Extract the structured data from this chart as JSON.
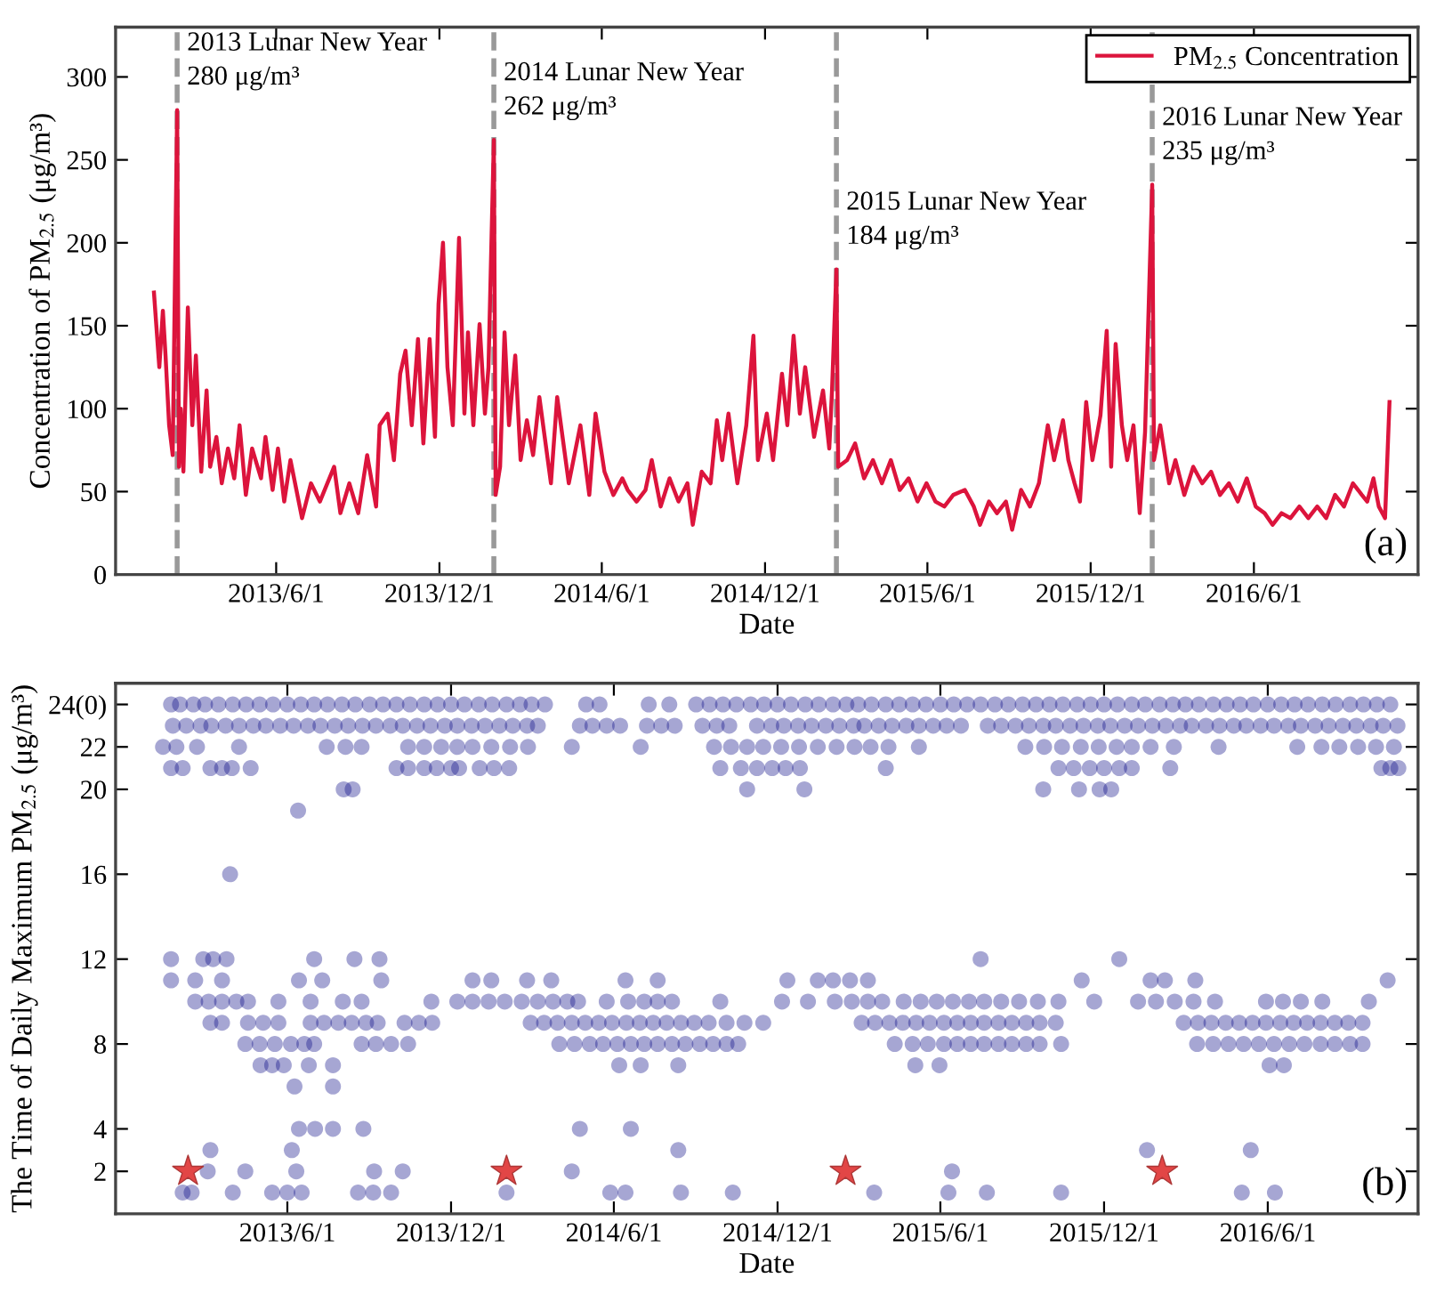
{
  "chart_data": [
    {
      "type": "line",
      "xlabel": "Date",
      "ylabel": "Concentration of PM$_{2.5}$ (μg/m³)",
      "legend": "top right",
      "xlim": [
        "2012-12-03",
        "2016-12-02"
      ],
      "ylim": [
        0,
        330
      ],
      "xticks": [
        {
          "value": "2013-06-01",
          "label": "2013/6/1"
        },
        {
          "value": "2013-12-01",
          "label": "2013/12/1"
        },
        {
          "value": "2014-06-01",
          "label": "2014/6/1"
        },
        {
          "value": "2014-12-01",
          "label": "2014/12/1"
        },
        {
          "value": "2015-06-01",
          "label": "2015/6/1"
        },
        {
          "value": "2015-12-01",
          "label": "2015/12/1"
        },
        {
          "value": "2016-06-01",
          "label": "2016/6/1"
        }
      ],
      "yticks": [
        0,
        50,
        100,
        150,
        200,
        250,
        300
      ],
      "series": [
        {
          "name": "PM$_{2.5}$ Concentration",
          "color": "#dc143c",
          "x": [
            "2013-01-15",
            "2013-01-21",
            "2013-01-25",
            "2013-01-28",
            "2013-02-01",
            "2013-02-05",
            "2013-02-10",
            "2013-02-12",
            "2013-02-14",
            "2013-02-17",
            "2013-02-22",
            "2013-02-27",
            "2013-03-03",
            "2013-03-09",
            "2013-03-15",
            "2013-03-19",
            "2013-03-26",
            "2013-04-01",
            "2013-04-08",
            "2013-04-15",
            "2013-04-21",
            "2013-04-28",
            "2013-05-05",
            "2013-05-15",
            "2013-05-20",
            "2013-05-28",
            "2013-06-03",
            "2013-06-10",
            "2013-06-17",
            "2013-06-30",
            "2013-07-10",
            "2013-07-20",
            "2013-08-05",
            "2013-08-12",
            "2013-08-22",
            "2013-09-01",
            "2013-09-11",
            "2013-09-21",
            "2013-09-25",
            "2013-10-04",
            "2013-10-11",
            "2013-10-18",
            "2013-10-24",
            "2013-10-31",
            "2013-11-07",
            "2013-11-13",
            "2013-11-20",
            "2013-11-26",
            "2013-11-30",
            "2013-12-05",
            "2013-12-10",
            "2013-12-16",
            "2013-12-23",
            "2013-12-29",
            "2014-01-02",
            "2014-01-08",
            "2014-01-15",
            "2014-01-21",
            "2014-01-25",
            "2014-01-31",
            "2014-02-02",
            "2014-02-07",
            "2014-02-12",
            "2014-02-17",
            "2014-02-24",
            "2014-03-02",
            "2014-03-09",
            "2014-03-16",
            "2014-03-23",
            "2014-04-05",
            "2014-04-12",
            "2014-04-25",
            "2014-05-08",
            "2014-05-18",
            "2014-05-25",
            "2014-06-04",
            "2014-06-14",
            "2014-06-24",
            "2014-06-30",
            "2014-07-10",
            "2014-07-20",
            "2014-07-27",
            "2014-08-06",
            "2014-08-16",
            "2014-08-26",
            "2014-09-05",
            "2014-09-11",
            "2014-09-21",
            "2014-10-01",
            "2014-10-08",
            "2014-10-14",
            "2014-10-21",
            "2014-10-31",
            "2014-11-10",
            "2014-11-18",
            "2014-11-23",
            "2014-12-03",
            "2014-12-10",
            "2014-12-20",
            "2014-12-26",
            "2015-01-02",
            "2015-01-09",
            "2015-01-15",
            "2015-01-25",
            "2015-02-04",
            "2015-02-11",
            "2015-02-14",
            "2015-02-19",
            "2015-02-21",
            "2015-03-03",
            "2015-03-12",
            "2015-03-22",
            "2015-04-01",
            "2015-04-11",
            "2015-04-21",
            "2015-05-01",
            "2015-05-11",
            "2015-05-21",
            "2015-05-31",
            "2015-06-10",
            "2015-06-20",
            "2015-06-30",
            "2015-07-13",
            "2015-07-23",
            "2015-07-30",
            "2015-08-09",
            "2015-08-18",
            "2015-08-28",
            "2015-09-04",
            "2015-09-14",
            "2015-09-24",
            "2015-10-04",
            "2015-10-14",
            "2015-10-21",
            "2015-10-31",
            "2015-11-06",
            "2015-11-13",
            "2015-11-19",
            "2015-11-26",
            "2015-12-03",
            "2015-12-12",
            "2015-12-19",
            "2015-12-24",
            "2015-12-29",
            "2016-01-05",
            "2016-01-11",
            "2016-01-18",
            "2016-01-25",
            "2016-01-31",
            "2016-02-08",
            "2016-02-10",
            "2016-02-17",
            "2016-02-27",
            "2016-03-05",
            "2016-03-15",
            "2016-03-25",
            "2016-04-04",
            "2016-04-14",
            "2016-04-24",
            "2016-05-04",
            "2016-05-14",
            "2016-05-24",
            "2016-06-03",
            "2016-06-13",
            "2016-06-22",
            "2016-07-02",
            "2016-07-12",
            "2016-07-22",
            "2016-08-01",
            "2016-08-11",
            "2016-08-21",
            "2016-08-31",
            "2016-09-10",
            "2016-09-20",
            "2016-09-30",
            "2016-10-06",
            "2016-10-13",
            "2016-10-19",
            "2016-10-26",
            "2016-10-31"
          ],
          "values": [
            170,
            125,
            159,
            132,
            90,
            72,
            280,
            65,
            100,
            62,
            161,
            90,
            132,
            62,
            111,
            65,
            83,
            55,
            76,
            58,
            90,
            48,
            76,
            58,
            83,
            51,
            76,
            44,
            69,
            34,
            55,
            44,
            65,
            37,
            55,
            37,
            72,
            41,
            90,
            97,
            69,
            121,
            135,
            90,
            142,
            79,
            142,
            83,
            163,
            200,
            125,
            90,
            203,
            97,
            146,
            90,
            151,
            97,
            125,
            262,
            48,
            65,
            146,
            90,
            132,
            69,
            93,
            72,
            107,
            55,
            107,
            55,
            90,
            48,
            97,
            62,
            48,
            58,
            51,
            44,
            51,
            69,
            41,
            58,
            44,
            55,
            30,
            62,
            55,
            93,
            69,
            97,
            55,
            90,
            144,
            69,
            97,
            69,
            121,
            90,
            144,
            97,
            125,
            83,
            111,
            76,
            110,
            184,
            65,
            69,
            79,
            58,
            69,
            55,
            69,
            51,
            58,
            44,
            55,
            44,
            41,
            48,
            51,
            41,
            30,
            44,
            37,
            44,
            27,
            51,
            41,
            55,
            90,
            69,
            93,
            69,
            55,
            44,
            104,
            69,
            96,
            147,
            65,
            139,
            90,
            69,
            90,
            37,
            86,
            235,
            69,
            90,
            55,
            69,
            48,
            65,
            55,
            62,
            48,
            55,
            44,
            58,
            41,
            37,
            30,
            37,
            34,
            41,
            34,
            41,
            34,
            48,
            41,
            55,
            48,
            44,
            58,
            41,
            34,
            104
          ]
        }
      ],
      "ref_lines": [
        {
          "axis": "x",
          "value": "2013-02-10",
          "color": "#999999",
          "line_style": "dashed"
        },
        {
          "axis": "x",
          "value": "2014-01-31",
          "color": "#999999",
          "line_style": "dashed"
        },
        {
          "axis": "x",
          "value": "2015-02-19",
          "color": "#999999",
          "line_style": "dashed"
        },
        {
          "axis": "x",
          "value": "2016-02-08",
          "color": "#999999",
          "line_style": "dashed"
        }
      ],
      "annotations": [
        {
          "text": "2013 Lunar New Year\n280 μg/m³",
          "x": "2013-02-10",
          "y": 280
        },
        {
          "text": "2014 Lunar New Year\n262 μg/m³",
          "x": "2014-01-31",
          "y": 262
        },
        {
          "text": "2015 Lunar New Year\n184 μg/m³",
          "x": "2015-02-19",
          "y": 184
        },
        {
          "text": "2016 Lunar New Year\n235 μg/m³",
          "x": "2016-02-08",
          "y": 235
        },
        "(a)"
      ]
    },
    {
      "type": "scatter",
      "marker": "circle",
      "xlabel": "Date",
      "ylabel": "The Time of Daily Maximum PM$_{2.5}$ (μg/m³)",
      "xlim": [
        "2012-11-21",
        "2016-11-16"
      ],
      "ylim": [
        0,
        25
      ],
      "xticks": [
        {
          "value": "2013-06-01",
          "label": "2013/6/1"
        },
        {
          "value": "2013-12-01",
          "label": "2013/12/1"
        },
        {
          "value": "2014-06-01",
          "label": "2014/6/1"
        },
        {
          "value": "2014-12-01",
          "label": "2014/12/1"
        },
        {
          "value": "2015-06-01",
          "label": "2015/6/1"
        },
        {
          "value": "2015-12-01",
          "label": "2015/12/1"
        },
        {
          "value": "2016-06-01",
          "label": "2016/6/1"
        }
      ],
      "yticks": [
        2,
        4,
        8,
        12,
        16,
        20,
        22,
        {
          "value": 24,
          "label": "24(0)"
        }
      ],
      "series": [
        {
          "color": "#000080",
          "x": [
            "2013-01-22",
            "2013-02-01",
            "2013-02-16",
            "2013-03-01",
            "2013-03-16",
            "2013-04-01",
            "2013-04-16",
            "2013-05-01",
            "2013-05-16",
            "2013-06-01",
            "2013-06-16",
            "2013-07-01",
            "2013-07-16",
            "2013-08-01",
            "2013-08-16",
            "2013-09-01",
            "2013-09-16",
            "2013-10-01",
            "2013-10-16",
            "2013-11-01",
            "2013-11-16",
            "2013-12-01",
            "2013-12-16",
            "2014-01-01",
            "2014-01-16",
            "2014-02-01",
            "2014-02-16",
            "2014-03-01",
            "2014-03-16",
            "2014-05-01",
            "2014-05-16",
            "2014-07-10",
            "2014-08-02",
            "2014-09-01",
            "2014-09-16",
            "2014-10-01",
            "2014-10-16",
            "2014-11-01",
            "2014-11-16",
            "2014-12-01",
            "2014-12-16",
            "2015-01-01",
            "2015-01-16",
            "2015-02-01",
            "2015-02-16",
            "2015-03-01",
            "2015-03-16",
            "2015-04-01",
            "2015-04-16",
            "2015-05-01",
            "2015-05-16",
            "2015-06-01",
            "2015-06-16",
            "2015-07-01",
            "2015-07-16",
            "2015-08-01",
            "2015-08-16",
            "2015-09-01",
            "2015-09-16",
            "2015-10-01",
            "2015-10-16",
            "2015-11-01",
            "2015-11-16",
            "2015-12-01",
            "2015-12-16",
            "2016-01-01",
            "2016-01-16",
            "2016-02-01",
            "2016-02-16",
            "2016-03-01",
            "2016-03-16",
            "2016-04-01",
            "2016-04-16",
            "2016-05-01",
            "2016-05-16",
            "2016-06-01",
            "2016-06-16",
            "2016-07-01",
            "2016-07-16",
            "2016-08-01",
            "2016-08-16",
            "2016-09-01",
            "2016-09-16",
            "2016-10-01",
            "2016-10-16"
          ],
          "values": [
            24,
            24,
            24,
            24,
            24,
            24,
            24,
            24,
            24,
            24,
            24,
            24,
            24,
            24,
            24,
            24,
            24,
            24,
            24,
            24,
            24,
            24,
            24,
            24,
            24,
            24,
            24,
            24,
            24,
            24,
            24,
            24,
            24,
            24,
            24,
            24,
            24,
            24,
            24,
            24,
            24,
            24,
            24,
            24,
            24,
            24,
            24,
            24,
            24,
            24,
            24,
            24,
            24,
            24,
            24,
            24,
            24,
            24,
            24,
            24,
            24,
            24,
            24,
            24,
            24,
            24,
            24,
            24,
            24,
            24,
            24,
            24,
            24,
            24,
            24,
            24,
            24,
            24,
            24,
            24,
            24,
            24,
            24,
            24,
            24
          ]
        },
        {
          "color": "#000080",
          "x": [
            "2013-01-24",
            "2013-02-08",
            "2013-02-24",
            "2013-03-08",
            "2013-03-24",
            "2013-04-08",
            "2013-04-24",
            "2013-05-08",
            "2013-05-24",
            "2013-06-08",
            "2013-06-24",
            "2013-07-08",
            "2013-07-24",
            "2013-08-08",
            "2013-08-24",
            "2013-09-08",
            "2013-09-24",
            "2013-10-08",
            "2013-10-24",
            "2013-11-08",
            "2013-11-24",
            "2013-12-08",
            "2013-12-24",
            "2014-01-08",
            "2014-01-24",
            "2014-02-08",
            "2014-02-24",
            "2014-03-08",
            "2014-04-24",
            "2014-05-08",
            "2014-05-24",
            "2014-06-08",
            "2014-07-08",
            "2014-07-24",
            "2014-08-08",
            "2014-09-08",
            "2014-09-24",
            "2014-10-08",
            "2014-11-08",
            "2014-11-24",
            "2014-12-08",
            "2014-12-24",
            "2015-01-08",
            "2015-01-24",
            "2015-02-08",
            "2015-02-24",
            "2015-03-08",
            "2015-03-24",
            "2015-04-08",
            "2015-04-24",
            "2015-05-08",
            "2015-05-24",
            "2015-06-08",
            "2015-06-24",
            "2015-07-24",
            "2015-08-08",
            "2015-08-24",
            "2015-09-08",
            "2015-09-24",
            "2015-10-08",
            "2015-10-24",
            "2015-11-08",
            "2015-11-24",
            "2015-12-08",
            "2015-12-24",
            "2016-01-08",
            "2016-01-24",
            "2016-02-08",
            "2016-02-24",
            "2016-03-08",
            "2016-03-24",
            "2016-04-08",
            "2016-04-24",
            "2016-05-08",
            "2016-05-24",
            "2016-06-08",
            "2016-06-24",
            "2016-07-08",
            "2016-07-24",
            "2016-08-08",
            "2016-08-24",
            "2016-09-08",
            "2016-09-24",
            "2016-10-08",
            "2016-10-24"
          ],
          "values": [
            23,
            23,
            23,
            23,
            23,
            23,
            23,
            23,
            23,
            23,
            23,
            23,
            23,
            23,
            23,
            23,
            23,
            23,
            23,
            23,
            23,
            23,
            23,
            23,
            23,
            23,
            23,
            23,
            23,
            23,
            23,
            23,
            23,
            23,
            23,
            23,
            23,
            23,
            23,
            23,
            23,
            23,
            23,
            23,
            23,
            23,
            23,
            23,
            23,
            23,
            23,
            23,
            23,
            23,
            23,
            23,
            23,
            23,
            23,
            23,
            23,
            23,
            23,
            23,
            23,
            23,
            23,
            23,
            23,
            23,
            23,
            23,
            23,
            23,
            23,
            23,
            23,
            23,
            23,
            23,
            23,
            23,
            23,
            23,
            23
          ]
        },
        {
          "color": "#000080",
          "x": [
            "2013-01-13",
            "2013-01-28",
            "2013-02-20",
            "2013-04-08",
            "2013-07-15",
            "2013-08-05",
            "2013-08-23",
            "2013-10-14",
            "2013-11-01",
            "2013-11-20",
            "2013-12-08",
            "2013-12-25",
            "2014-01-15",
            "2014-02-05",
            "2014-02-25",
            "2014-04-15",
            "2014-07-01",
            "2014-09-21",
            "2014-10-10",
            "2014-10-28",
            "2014-11-15",
            "2014-12-05",
            "2014-12-25",
            "2015-01-15",
            "2015-02-05",
            "2015-02-25",
            "2015-03-15",
            "2015-04-04",
            "2015-05-08",
            "2015-09-04",
            "2015-09-25",
            "2015-10-15",
            "2015-11-05",
            "2015-11-25",
            "2015-12-15",
            "2016-01-01",
            "2016-01-22",
            "2016-02-17",
            "2016-04-07",
            "2016-07-04",
            "2016-07-31",
            "2016-08-20",
            "2016-09-10",
            "2016-09-30",
            "2016-10-20"
          ],
          "values": [
            22,
            22,
            22,
            22,
            22,
            22,
            22,
            22,
            22,
            22,
            22,
            22,
            22,
            22,
            22,
            22,
            22,
            22,
            22,
            22,
            22,
            22,
            22,
            22,
            22,
            22,
            22,
            22,
            22,
            22,
            22,
            22,
            22,
            22,
            22,
            22,
            22,
            22,
            22,
            22,
            22,
            22,
            22,
            22,
            22
          ]
        },
        {
          "color": "#000080",
          "x": [
            "2013-01-22",
            "2013-02-04",
            "2013-03-07",
            "2013-03-20",
            "2013-03-31",
            "2013-04-21",
            "2013-10-01",
            "2013-10-14",
            "2013-11-01",
            "2013-11-15",
            "2013-12-01",
            "2013-12-10",
            "2014-01-02",
            "2014-01-18",
            "2014-02-04",
            "2014-09-28",
            "2014-10-21",
            "2014-11-08",
            "2014-11-25",
            "2014-12-10",
            "2014-12-26",
            "2015-04-01",
            "2015-10-11",
            "2015-10-28",
            "2015-11-15",
            "2015-12-01",
            "2015-12-18",
            "2016-01-01",
            "2016-02-13",
            "2016-10-06",
            "2016-10-16",
            "2016-10-25"
          ],
          "values": [
            21,
            21,
            21,
            21,
            21,
            21,
            21,
            21,
            21,
            21,
            21,
            21,
            21,
            21,
            21,
            21,
            21,
            21,
            21,
            21,
            21,
            21,
            21,
            21,
            21,
            21,
            21,
            21,
            21,
            21,
            21,
            21
          ]
        },
        {
          "color": "#000080",
          "x": [
            "2013-08-03",
            "2013-08-13",
            "2014-10-28",
            "2014-12-31",
            "2015-09-24",
            "2015-11-03",
            "2015-11-26",
            "2015-12-09"
          ],
          "values": [
            20,
            20,
            20,
            20,
            20,
            20,
            20,
            20
          ]
        },
        {
          "color": "#000080",
          "x": [
            "2013-06-13"
          ],
          "values": [
            19
          ]
        },
        {
          "color": "#000080",
          "x": [
            "2013-03-29"
          ],
          "values": [
            16
          ]
        },
        {
          "color": "#000080",
          "x": [
            "2013-01-22",
            "2013-02-27",
            "2013-03-10",
            "2013-03-25",
            "2013-07-01",
            "2013-08-15",
            "2013-09-12",
            "2015-07-16",
            "2015-12-18"
          ],
          "values": [
            12,
            12,
            12,
            12,
            12,
            12,
            12,
            12,
            12
          ]
        },
        {
          "color": "#000080",
          "x": [
            "2013-01-22",
            "2013-02-18",
            "2013-03-20",
            "2013-06-14",
            "2013-07-10",
            "2013-09-14",
            "2013-12-25",
            "2014-01-15",
            "2014-02-24",
            "2014-03-23",
            "2014-06-14",
            "2014-07-20",
            "2014-12-12",
            "2015-01-15",
            "2015-02-01",
            "2015-02-20",
            "2015-03-12",
            "2015-11-06",
            "2016-01-22",
            "2016-02-07",
            "2016-03-12",
            "2016-10-13"
          ],
          "values": [
            11,
            11,
            11,
            11,
            11,
            11,
            11,
            11,
            11,
            11,
            11,
            11,
            11,
            11,
            11,
            11,
            11,
            11,
            11,
            11,
            11,
            11
          ]
        },
        {
          "color": "#000080",
          "x": [
            "2013-02-18",
            "2013-03-05",
            "2013-03-20",
            "2013-04-05",
            "2013-04-18",
            "2013-05-22",
            "2013-06-27",
            "2013-08-02",
            "2013-08-23",
            "2013-11-09",
            "2013-12-08",
            "2013-12-25",
            "2014-01-12",
            "2014-01-30",
            "2014-02-18",
            "2014-03-08",
            "2014-03-25",
            "2014-04-10",
            "2014-04-22",
            "2014-05-24",
            "2014-06-17",
            "2014-07-05",
            "2014-07-20",
            "2014-08-05",
            "2014-09-28",
            "2014-12-06",
            "2015-01-04",
            "2015-02-03",
            "2015-02-22",
            "2015-03-12",
            "2015-03-28",
            "2015-04-21",
            "2015-05-10",
            "2015-05-28",
            "2015-06-15",
            "2015-07-03",
            "2015-07-20",
            "2015-08-08",
            "2015-08-28",
            "2015-09-18",
            "2015-10-11",
            "2015-11-20",
            "2016-01-08",
            "2016-01-28",
            "2016-02-18",
            "2016-03-10",
            "2016-04-03",
            "2016-05-30",
            "2016-06-18",
            "2016-07-08",
            "2016-08-01",
            "2016-09-22"
          ],
          "values": [
            10,
            10,
            10,
            10,
            10,
            10,
            10,
            10,
            10,
            10,
            10,
            10,
            10,
            10,
            10,
            10,
            10,
            10,
            10,
            10,
            10,
            10,
            10,
            10,
            10,
            10,
            10,
            10,
            10,
            10,
            10,
            10,
            10,
            10,
            10,
            10,
            10,
            10,
            10,
            10,
            10,
            10,
            10,
            10,
            10,
            10,
            10,
            10,
            10,
            10,
            10,
            10
          ]
        },
        {
          "color": "#000080",
          "x": [
            "2013-03-07",
            "2013-03-20",
            "2013-04-18",
            "2013-05-05",
            "2013-05-22",
            "2013-06-27",
            "2013-07-12",
            "2013-07-28",
            "2013-08-12",
            "2013-08-28",
            "2013-09-10",
            "2013-10-10",
            "2013-10-26",
            "2013-11-10",
            "2014-02-28",
            "2014-03-15",
            "2014-03-30",
            "2014-04-15",
            "2014-04-30",
            "2014-05-15",
            "2014-05-30",
            "2014-06-15",
            "2014-06-30",
            "2014-07-15",
            "2014-07-30",
            "2014-08-15",
            "2014-08-30",
            "2014-09-15",
            "2014-10-05",
            "2014-10-25",
            "2014-11-15",
            "2015-03-05",
            "2015-03-20",
            "2015-04-05",
            "2015-04-20",
            "2015-05-05",
            "2015-05-20",
            "2015-06-05",
            "2015-06-20",
            "2015-07-05",
            "2015-07-20",
            "2015-08-05",
            "2015-08-20",
            "2015-09-05",
            "2015-09-20",
            "2015-10-08",
            "2016-02-28",
            "2016-03-15",
            "2016-03-30",
            "2016-04-15",
            "2016-04-30",
            "2016-05-15",
            "2016-05-30",
            "2016-06-15",
            "2016-06-30",
            "2016-07-15",
            "2016-07-30",
            "2016-08-15",
            "2016-08-30",
            "2016-09-15"
          ],
          "values": [
            9,
            9,
            9,
            9,
            9,
            9,
            9,
            9,
            9,
            9,
            9,
            9,
            9,
            9,
            9,
            9,
            9,
            9,
            9,
            9,
            9,
            9,
            9,
            9,
            9,
            9,
            9,
            9,
            9,
            9,
            9,
            9,
            9,
            9,
            9,
            9,
            9,
            9,
            9,
            9,
            9,
            9,
            9,
            9,
            9,
            9,
            9,
            9,
            9,
            9,
            9,
            9,
            9,
            9,
            9,
            9,
            9,
            9,
            9,
            9
          ]
        },
        {
          "color": "#000080",
          "x": [
            "2013-04-15",
            "2013-05-01",
            "2013-05-18",
            "2013-06-05",
            "2013-06-20",
            "2013-07-01",
            "2013-08-23",
            "2013-09-08",
            "2013-09-25",
            "2013-10-14",
            "2014-04-01",
            "2014-04-18",
            "2014-05-05",
            "2014-05-20",
            "2014-06-05",
            "2014-06-20",
            "2014-07-05",
            "2014-07-20",
            "2014-08-05",
            "2014-08-20",
            "2014-09-05",
            "2014-09-20",
            "2014-10-05",
            "2014-10-18",
            "2015-04-11",
            "2015-05-01",
            "2015-05-18",
            "2015-06-05",
            "2015-06-20",
            "2015-07-05",
            "2015-07-20",
            "2015-08-05",
            "2015-08-20",
            "2015-09-05",
            "2015-09-20",
            "2015-10-14",
            "2016-03-14",
            "2016-04-01",
            "2016-04-18",
            "2016-05-05",
            "2016-05-22",
            "2016-06-08",
            "2016-06-25",
            "2016-07-12",
            "2016-07-30",
            "2016-08-15",
            "2016-09-01",
            "2016-09-15"
          ],
          "values": [
            8,
            8,
            8,
            8,
            8,
            8,
            8,
            8,
            8,
            8,
            8,
            8,
            8,
            8,
            8,
            8,
            8,
            8,
            8,
            8,
            8,
            8,
            8,
            8,
            8,
            8,
            8,
            8,
            8,
            8,
            8,
            8,
            8,
            8,
            8,
            8,
            8,
            8,
            8,
            8,
            8,
            8,
            8,
            8,
            8,
            8,
            8,
            8
          ]
        },
        {
          "color": "#000080",
          "x": [
            "2013-05-02",
            "2013-05-15",
            "2013-05-28",
            "2013-06-25",
            "2013-07-22",
            "2014-06-07",
            "2014-07-01",
            "2014-08-12",
            "2015-05-04",
            "2015-05-31",
            "2016-06-03",
            "2016-06-19"
          ],
          "values": [
            7,
            7,
            7,
            7,
            7,
            7,
            7,
            7,
            7,
            7,
            7,
            7
          ]
        },
        {
          "color": "#000080",
          "x": [
            "2013-06-09",
            "2013-07-22"
          ],
          "values": [
            6,
            6
          ]
        },
        {
          "color": "#000080",
          "x": [
            "2013-06-14",
            "2013-07-02",
            "2013-07-22",
            "2013-08-25",
            "2014-04-24",
            "2014-06-20"
          ],
          "values": [
            4,
            4,
            4,
            4,
            4,
            4
          ]
        },
        {
          "color": "#000080",
          "x": [
            "2013-03-07",
            "2013-06-06",
            "2014-08-12",
            "2016-01-18",
            "2016-05-13"
          ],
          "values": [
            3,
            3,
            3,
            3,
            3
          ]
        },
        {
          "color": "#000080",
          "x": [
            "2013-03-04",
            "2013-04-15",
            "2013-06-11",
            "2013-09-06",
            "2013-10-08",
            "2014-04-15",
            "2015-06-14"
          ],
          "values": [
            2,
            2,
            2,
            2,
            2,
            2,
            2
          ]
        },
        {
          "color": "#000080",
          "x": [
            "2013-02-04",
            "2013-02-14",
            "2013-04-01",
            "2013-05-15",
            "2013-06-01",
            "2013-06-17",
            "2013-08-19",
            "2013-09-05",
            "2013-09-25",
            "2014-02-01",
            "2014-05-28",
            "2014-06-14",
            "2014-08-15",
            "2014-10-12",
            "2015-03-19",
            "2015-06-10",
            "2015-07-23",
            "2015-10-14",
            "2016-05-03",
            "2016-06-09"
          ],
          "values": [
            1,
            1,
            1,
            1,
            1,
            1,
            1,
            1,
            1,
            1,
            1,
            1,
            1,
            1,
            1,
            1,
            1,
            1,
            1,
            1
          ]
        },
        {
          "color": "#e03c3c",
          "marker": "star",
          "x": [
            "2013-02-10",
            "2014-02-01",
            "2015-02-15",
            "2016-02-04"
          ],
          "values": [
            2,
            2,
            2,
            2
          ]
        }
      ],
      "annotations": [
        "(b)"
      ]
    }
  ]
}
